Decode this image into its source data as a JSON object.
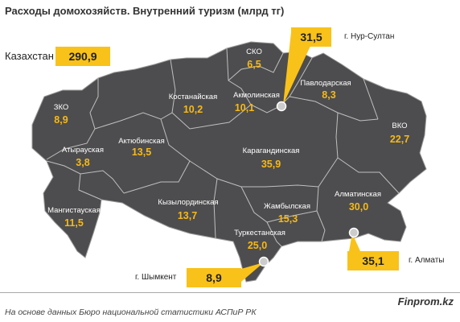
{
  "title": "Расходы домохозяйств. Внутренний туризм (млрд тг)",
  "kazakhstan": {
    "label": "Казахстан",
    "value": "290,9"
  },
  "regions": [
    {
      "id": "zko",
      "name": "ЗКО",
      "value": "8,9"
    },
    {
      "id": "atyrau",
      "name": "Атырауская",
      "value": "3,8"
    },
    {
      "id": "mangystau",
      "name": "Мангистауская",
      "value": "11,5"
    },
    {
      "id": "aktobe",
      "name": "Актюбинская",
      "value": "13,5"
    },
    {
      "id": "kostanay",
      "name": "Костанайская",
      "value": "10,2"
    },
    {
      "id": "sko",
      "name": "СКО",
      "value": "6,5"
    },
    {
      "id": "akmola",
      "name": "Акмолинская",
      "value": "10,1"
    },
    {
      "id": "pavlodar",
      "name": "Павлодарская",
      "value": "8,3"
    },
    {
      "id": "vko",
      "name": "ВКО",
      "value": "22,7"
    },
    {
      "id": "karaganda",
      "name": "Карагандинская",
      "value": "35,9"
    },
    {
      "id": "kyzylorda",
      "name": "Кызылординская",
      "value": "13,7"
    },
    {
      "id": "zhambyl",
      "name": "Жамбылская",
      "value": "15,3"
    },
    {
      "id": "almaty-reg",
      "name": "Алматинская",
      "value": "30,0"
    },
    {
      "id": "turkestan",
      "name": "Туркестанская",
      "value": "25,0"
    }
  ],
  "cities": {
    "nursultan": {
      "label": "г. Нур-Султан",
      "value": "31,5"
    },
    "almaty": {
      "label": "г. Алматы",
      "value": "35,1"
    },
    "shymkent": {
      "label": "г. Шымкент",
      "value": "8,9"
    }
  },
  "source": "На основе данных Бюро национальной статистики АСПиР РК",
  "brand": "Finprom.kz",
  "colors": {
    "map_fill": "#4d4d4f",
    "border": "#bfbfbf",
    "value_text": "#f7b916",
    "callout": "#f9c21a"
  }
}
